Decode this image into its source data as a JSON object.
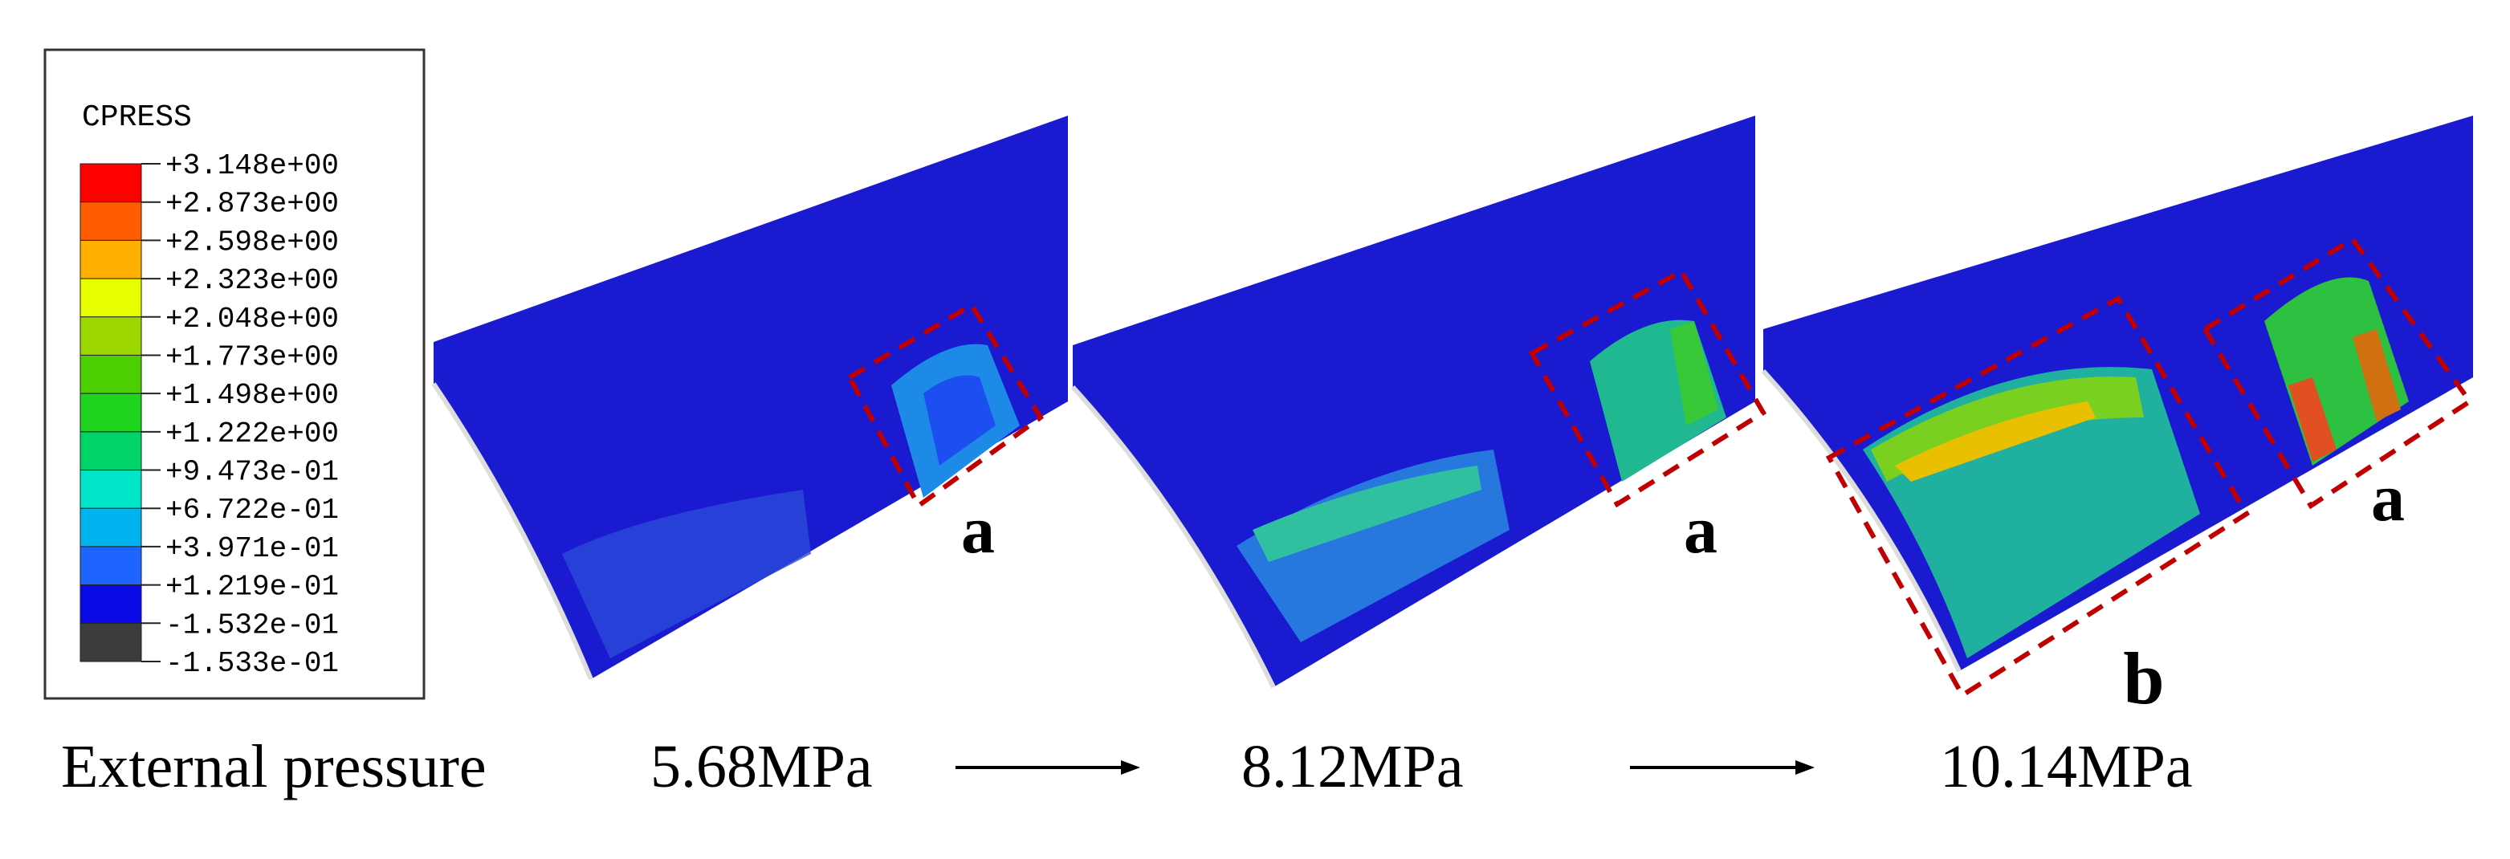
{
  "legend": {
    "title": "CPRESS",
    "labels": [
      "+3.148e+00",
      "+2.873e+00",
      "+2.598e+00",
      "+2.323e+00",
      "+2.048e+00",
      "+1.773e+00",
      "+1.498e+00",
      "+1.222e+00",
      "+9.473e-01",
      "+6.722e-01",
      "+3.971e-01",
      "+1.219e-01",
      "-1.532e-01",
      "-1.533e-01"
    ],
    "colors": [
      "#ff0000",
      "#ff5d00",
      "#ffb000",
      "#e8ff00",
      "#9cd800",
      "#4ccf00",
      "#1ed41e",
      "#00d468",
      "#00e5c8",
      "#00b4f0",
      "#1e64ff",
      "#0a0ae6",
      "#3c3c3c"
    ]
  },
  "panel_labels": [
    "a",
    "a",
    "a",
    "b"
  ],
  "caption": {
    "label": "External pressure",
    "pressures": [
      "5.68MPa",
      "8.12MPa",
      "10.14MPa"
    ]
  }
}
